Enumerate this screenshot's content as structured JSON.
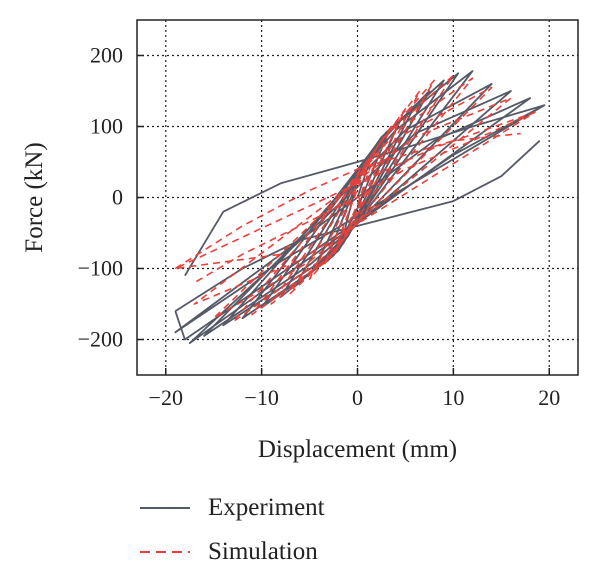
{
  "chart_data": {
    "type": "line",
    "title": "",
    "xlabel": "Displacement (mm)",
    "ylabel": "Force (kN)",
    "xlim": [
      -23,
      23
    ],
    "ylim": [
      -250,
      250
    ],
    "xticks": [
      -20,
      -10,
      0,
      10,
      20
    ],
    "yticks": [
      -200,
      -100,
      0,
      100,
      200
    ],
    "xtick_labels": [
      "−20",
      "−10",
      "0",
      "10",
      "20"
    ],
    "ytick_labels": [
      "−200",
      "−100",
      "0",
      "100",
      "200"
    ],
    "grid": "dotted",
    "legend_position": "below",
    "colors": {
      "experiment": "#555a66",
      "simulation": "#e8413c"
    },
    "series": [
      {
        "name": "Experiment",
        "style": "solid",
        "loops": [
          [
            [
              0,
              0
            ],
            [
              1.5,
              60
            ],
            [
              0,
              25
            ],
            [
              -1.5,
              -55
            ],
            [
              0,
              -15
            ]
          ],
          [
            [
              0,
              -15
            ],
            [
              3,
              85
            ],
            [
              0.5,
              40
            ],
            [
              -3,
              -80
            ],
            [
              -0.5,
              -40
            ]
          ],
          [
            [
              -0.5,
              -40
            ],
            [
              4.5,
              110
            ],
            [
              1,
              55
            ],
            [
              -4.5,
              -100
            ],
            [
              -1,
              -55
            ]
          ],
          [
            [
              -1,
              -55
            ],
            [
              6,
              130
            ],
            [
              1.5,
              65
            ],
            [
              -6.5,
              -125
            ],
            [
              -1.5,
              -65
            ]
          ],
          [
            [
              -1.5,
              -65
            ],
            [
              7.5,
              150
            ],
            [
              2,
              75
            ],
            [
              -8,
              -140
            ],
            [
              -2,
              -75
            ]
          ],
          [
            [
              -2,
              -75
            ],
            [
              9,
              165
            ],
            [
              2.5,
              85
            ],
            [
              -10,
              -155
            ],
            [
              -2.5,
              -82
            ]
          ],
          [
            [
              -2.5,
              -82
            ],
            [
              10.5,
              175
            ],
            [
              3,
              92
            ],
            [
              -12,
              -170
            ],
            [
              -3,
              -88
            ]
          ],
          [
            [
              -3,
              -88
            ],
            [
              12,
              178
            ],
            [
              4,
              95
            ],
            [
              -14,
              -180
            ],
            [
              -4,
              -92
            ]
          ],
          [
            [
              -4,
              -92
            ],
            [
              14,
              160
            ],
            [
              5,
              95
            ],
            [
              -16,
              -195
            ],
            [
              -5,
              -95
            ]
          ],
          [
            [
              -5,
              -95
            ],
            [
              16,
              150
            ],
            [
              6,
              90
            ],
            [
              -17.5,
              -205
            ],
            [
              -6,
              -95
            ]
          ],
          [
            [
              -6,
              -95
            ],
            [
              18,
              140
            ],
            [
              8,
              80
            ],
            [
              -19,
              -190
            ],
            [
              -8,
              -90
            ]
          ],
          [
            [
              -8,
              -90
            ],
            [
              19.5,
              130
            ],
            [
              10,
              60
            ],
            [
              -18,
              -200
            ],
            [
              -19,
              -160
            ]
          ],
          [
            [
              -19,
              -160
            ],
            [
              -12,
              -100
            ],
            [
              -6,
              -60
            ],
            [
              0,
              -40
            ],
            [
              10,
              -5
            ],
            [
              15,
              30
            ],
            [
              19,
              80
            ]
          ],
          [
            [
              19.5,
              130
            ],
            [
              12,
              100
            ],
            [
              5,
              70
            ],
            [
              0,
              50
            ],
            [
              -8,
              20
            ],
            [
              -14,
              -20
            ],
            [
              -18,
              -110
            ]
          ]
        ]
      },
      {
        "name": "Simulation",
        "style": "dashed",
        "loops": [
          [
            [
              0,
              -10
            ],
            [
              2,
              70
            ],
            [
              0.5,
              30
            ],
            [
              -2,
              -60
            ],
            [
              -0.5,
              -25
            ]
          ],
          [
            [
              -0.5,
              -25
            ],
            [
              3.5,
              100
            ],
            [
              1,
              50
            ],
            [
              -3.5,
              -95
            ],
            [
              -1,
              -45
            ]
          ],
          [
            [
              -1,
              -45
            ],
            [
              5,
              125
            ],
            [
              1.5,
              60
            ],
            [
              -5,
              -115
            ],
            [
              -1.5,
              -60
            ]
          ],
          [
            [
              -1.5,
              -60
            ],
            [
              6.5,
              150
            ],
            [
              2,
              70
            ],
            [
              -7,
              -135
            ],
            [
              -2,
              -70
            ]
          ],
          [
            [
              -2,
              -70
            ],
            [
              8,
              165
            ],
            [
              2.5,
              80
            ],
            [
              -9,
              -150
            ],
            [
              -2.5,
              -80
            ]
          ],
          [
            [
              -2.5,
              -80
            ],
            [
              10,
              172
            ],
            [
              3,
              88
            ],
            [
              -11,
              -165
            ],
            [
              -3,
              -85
            ]
          ],
          [
            [
              -3,
              -85
            ],
            [
              12,
              168
            ],
            [
              4,
              92
            ],
            [
              -13,
              -175
            ],
            [
              -4,
              -90
            ]
          ],
          [
            [
              -4,
              -90
            ],
            [
              14,
              155
            ],
            [
              5,
              90
            ],
            [
              -15,
              -170
            ],
            [
              -5,
              -90
            ]
          ],
          [
            [
              -5,
              -90
            ],
            [
              16,
              140
            ],
            [
              6,
              85
            ],
            [
              -17,
              -150
            ],
            [
              -6,
              -88
            ]
          ],
          [
            [
              -6,
              -88
            ],
            [
              18.5,
              120
            ],
            [
              8,
              70
            ],
            [
              -19,
              -100
            ],
            [
              -8,
              -80
            ]
          ],
          [
            [
              -19,
              -100
            ],
            [
              -12,
              -40
            ],
            [
              -5,
              10
            ],
            [
              0,
              40
            ],
            [
              5,
              60
            ],
            [
              10,
              80
            ],
            [
              17,
              90
            ]
          ],
          [
            [
              18.5,
              120
            ],
            [
              12,
              80
            ],
            [
              5,
              40
            ],
            [
              0,
              0
            ],
            [
              -6,
              -40
            ],
            [
              -12,
              -80
            ],
            [
              -17,
              -120
            ]
          ]
        ]
      }
    ]
  }
}
